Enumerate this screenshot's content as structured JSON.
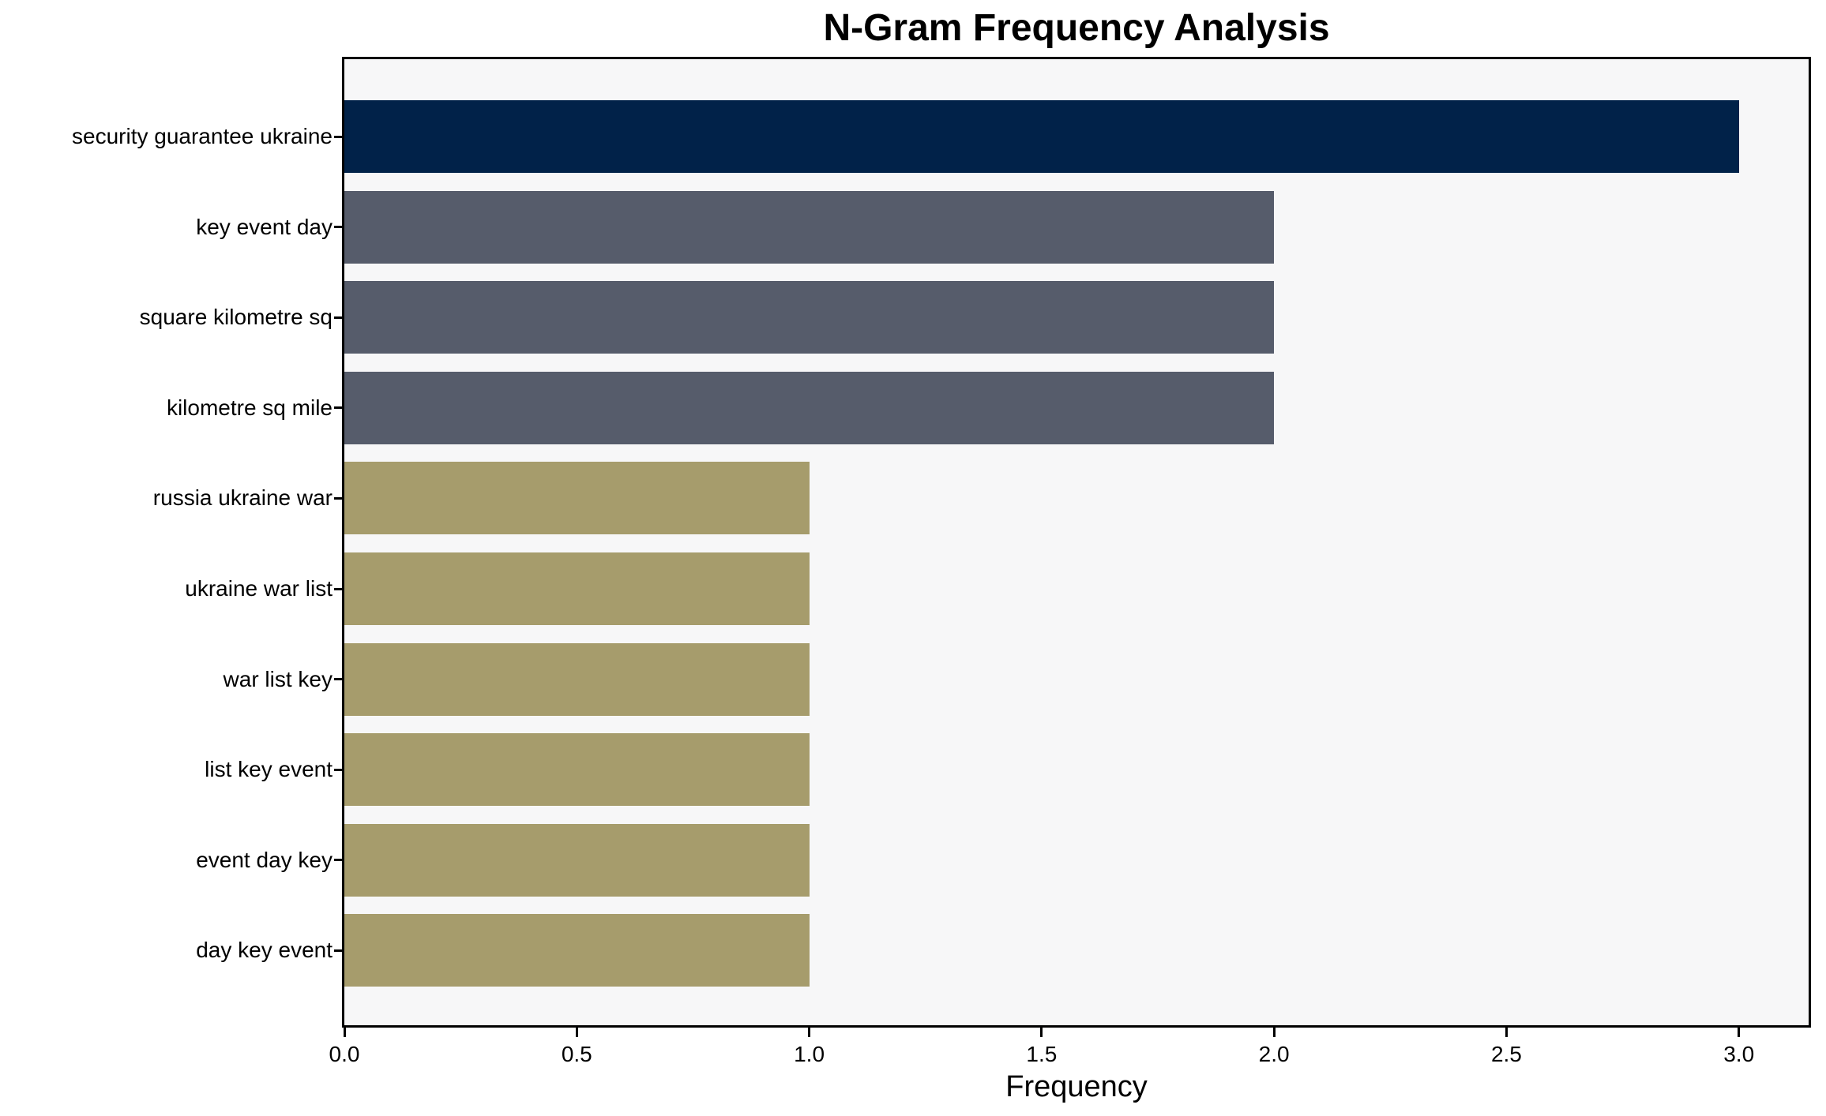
{
  "chart_data": {
    "type": "bar",
    "orientation": "horizontal",
    "title": "N-Gram Frequency Analysis",
    "xlabel": "Frequency",
    "ylabel": "",
    "categories": [
      "security guarantee ukraine",
      "key event day",
      "square kilometre sq",
      "kilometre sq mile",
      "russia ukraine war",
      "ukraine war list",
      "war list key",
      "list key event",
      "event day key",
      "day key event"
    ],
    "values": [
      3,
      2,
      2,
      2,
      1,
      1,
      1,
      1,
      1,
      1
    ],
    "bar_colors": [
      "#012249",
      "#565c6b",
      "#565c6b",
      "#565c6b",
      "#a69c6c",
      "#a69c6c",
      "#a69c6c",
      "#a69c6c",
      "#a69c6c",
      "#a69c6c"
    ],
    "xlim": [
      0,
      3.15
    ],
    "x_ticks": [
      {
        "value": 0.0,
        "label": "0.0"
      },
      {
        "value": 0.5,
        "label": "0.5"
      },
      {
        "value": 1.0,
        "label": "1.0"
      },
      {
        "value": 1.5,
        "label": "1.5"
      },
      {
        "value": 2.0,
        "label": "2.0"
      },
      {
        "value": 2.5,
        "label": "2.5"
      },
      {
        "value": 3.0,
        "label": "3.0"
      }
    ],
    "grid": false,
    "legend": null,
    "colors": {
      "plot_background": "#f7f7f8",
      "figure_background": "#ffffff",
      "spine": "#000000",
      "text": "#000000"
    }
  }
}
